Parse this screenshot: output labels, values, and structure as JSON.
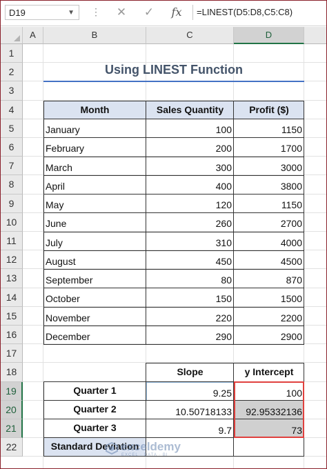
{
  "formula_bar": {
    "name_box": "D19",
    "formula": "=LINEST(D5:D8,C5:C8)",
    "cancel_icon": "close-icon",
    "enter_icon": "check-icon",
    "function_label": "fx"
  },
  "columns": [
    "A",
    "B",
    "C",
    "D"
  ],
  "rows": [
    "1",
    "2",
    "3",
    "4",
    "5",
    "6",
    "7",
    "8",
    "9",
    "10",
    "11",
    "12",
    "13",
    "14",
    "15",
    "16",
    "17",
    "18",
    "19",
    "20",
    "21",
    "22"
  ],
  "title": "Using LINEST Function",
  "table": {
    "headers": [
      "Month",
      "Sales Quantity",
      "Profit ($)"
    ],
    "rows": [
      [
        "January",
        "100",
        "1150"
      ],
      [
        "February",
        "200",
        "1700"
      ],
      [
        "March",
        "300",
        "3000"
      ],
      [
        "April",
        "400",
        "3800"
      ],
      [
        "May",
        "120",
        "1150"
      ],
      [
        "June",
        "260",
        "2700"
      ],
      [
        "July",
        "310",
        "4000"
      ],
      [
        "August",
        "450",
        "4500"
      ],
      [
        "September",
        "80",
        "870"
      ],
      [
        "October",
        "150",
        "1500"
      ],
      [
        "November",
        "220",
        "2200"
      ],
      [
        "December",
        "290",
        "2900"
      ]
    ]
  },
  "result": {
    "headers": [
      "Slope",
      "y Intercept"
    ],
    "rows": [
      [
        "Quarter 1",
        "9.25",
        "100"
      ],
      [
        "Quarter 2",
        "10.50718133",
        "92.95332136"
      ],
      [
        "Quarter 3",
        "9.7",
        "73"
      ],
      [
        "Standard Deviation",
        "",
        ""
      ]
    ]
  },
  "watermark": {
    "name": "exceldemy",
    "tagline": "EXCEL · DATA · BI"
  },
  "colors": {
    "header_fill": "#dbe3f1",
    "title_color": "#44546a",
    "title_rule": "#4472c4",
    "selection_border": "#e0403d",
    "excel_green": "#217346"
  }
}
